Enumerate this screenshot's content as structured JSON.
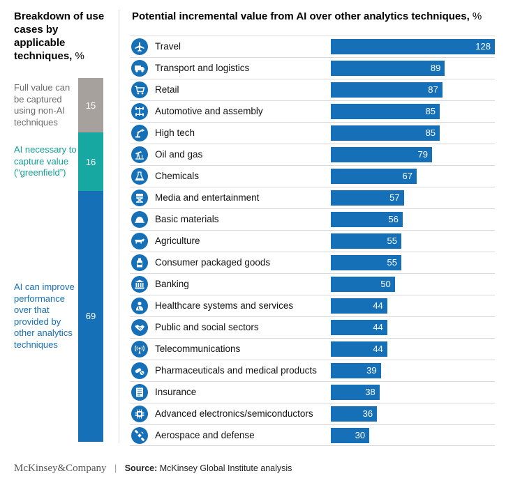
{
  "left_panel": {
    "title": "Breakdown of use cases by applicable techniques,",
    "unit": "%"
  },
  "right_panel": {
    "title": "Potential incremental value from AI over other analytics techniques,",
    "unit": "%"
  },
  "colors": {
    "bar": "#1670b7",
    "segment_gray": "#a6a19c",
    "segment_teal": "#17a9a1",
    "segment_blue": "#1670b7",
    "label_gray": "#6b6b6b",
    "label_teal": "#129f98",
    "label_blue": "#1670b7"
  },
  "chart_data": [
    {
      "type": "bar",
      "stacked": true,
      "title": "Breakdown of use cases by applicable techniques, %",
      "series": [
        {
          "name": "Full value can be captured using non-AI techniques",
          "value": 15
        },
        {
          "name": "AI necessary to capture value (“greenfield”)",
          "value": 16
        },
        {
          "name": "AI can improve performance over that provided by other analytics techniques",
          "value": 69
        }
      ]
    },
    {
      "type": "bar",
      "orientation": "horizontal",
      "title": "Potential incremental value from AI over other analytics techniques, %",
      "xlim": [
        0,
        128
      ],
      "categories": [
        {
          "label": "Travel",
          "value": 128,
          "icon": "airplane-icon"
        },
        {
          "label": "Transport and logistics",
          "value": 89,
          "icon": "truck-icon"
        },
        {
          "label": "Retail",
          "value": 87,
          "icon": "shopping-cart-icon"
        },
        {
          "label": "Automotive and assembly",
          "value": 85,
          "icon": "car-axle-icon"
        },
        {
          "label": "High tech",
          "value": 85,
          "icon": "robot-arm-icon"
        },
        {
          "label": "Oil and gas",
          "value": 79,
          "icon": "oil-pump-icon"
        },
        {
          "label": "Chemicals",
          "value": 67,
          "icon": "flask-icon"
        },
        {
          "label": "Media and entertainment",
          "value": 57,
          "icon": "director-chair-icon"
        },
        {
          "label": "Basic materials",
          "value": 56,
          "icon": "hard-hat-icon"
        },
        {
          "label": "Agriculture",
          "value": 55,
          "icon": "cow-icon"
        },
        {
          "label": "Consumer packaged goods",
          "value": 55,
          "icon": "bottle-icon"
        },
        {
          "label": "Banking",
          "value": 50,
          "icon": "bank-icon"
        },
        {
          "label": "Healthcare systems and services",
          "value": 44,
          "icon": "doctor-icon"
        },
        {
          "label": "Public and social sectors",
          "value": 44,
          "icon": "handshake-icon"
        },
        {
          "label": "Telecommunications",
          "value": 44,
          "icon": "antenna-icon"
        },
        {
          "label": "Pharmaceuticals and medical products",
          "value": 39,
          "icon": "pills-icon"
        },
        {
          "label": "Insurance",
          "value": 38,
          "icon": "document-icon"
        },
        {
          "label": "Advanced electronics/semiconductors",
          "value": 36,
          "icon": "chip-icon"
        },
        {
          "label": "Aerospace and defense",
          "value": 30,
          "icon": "satellite-icon"
        }
      ]
    }
  ],
  "footer": {
    "brand": "McKinsey&Company",
    "separator": "|",
    "source_label": "Source:",
    "source_text": "McKinsey Global Institute analysis"
  }
}
